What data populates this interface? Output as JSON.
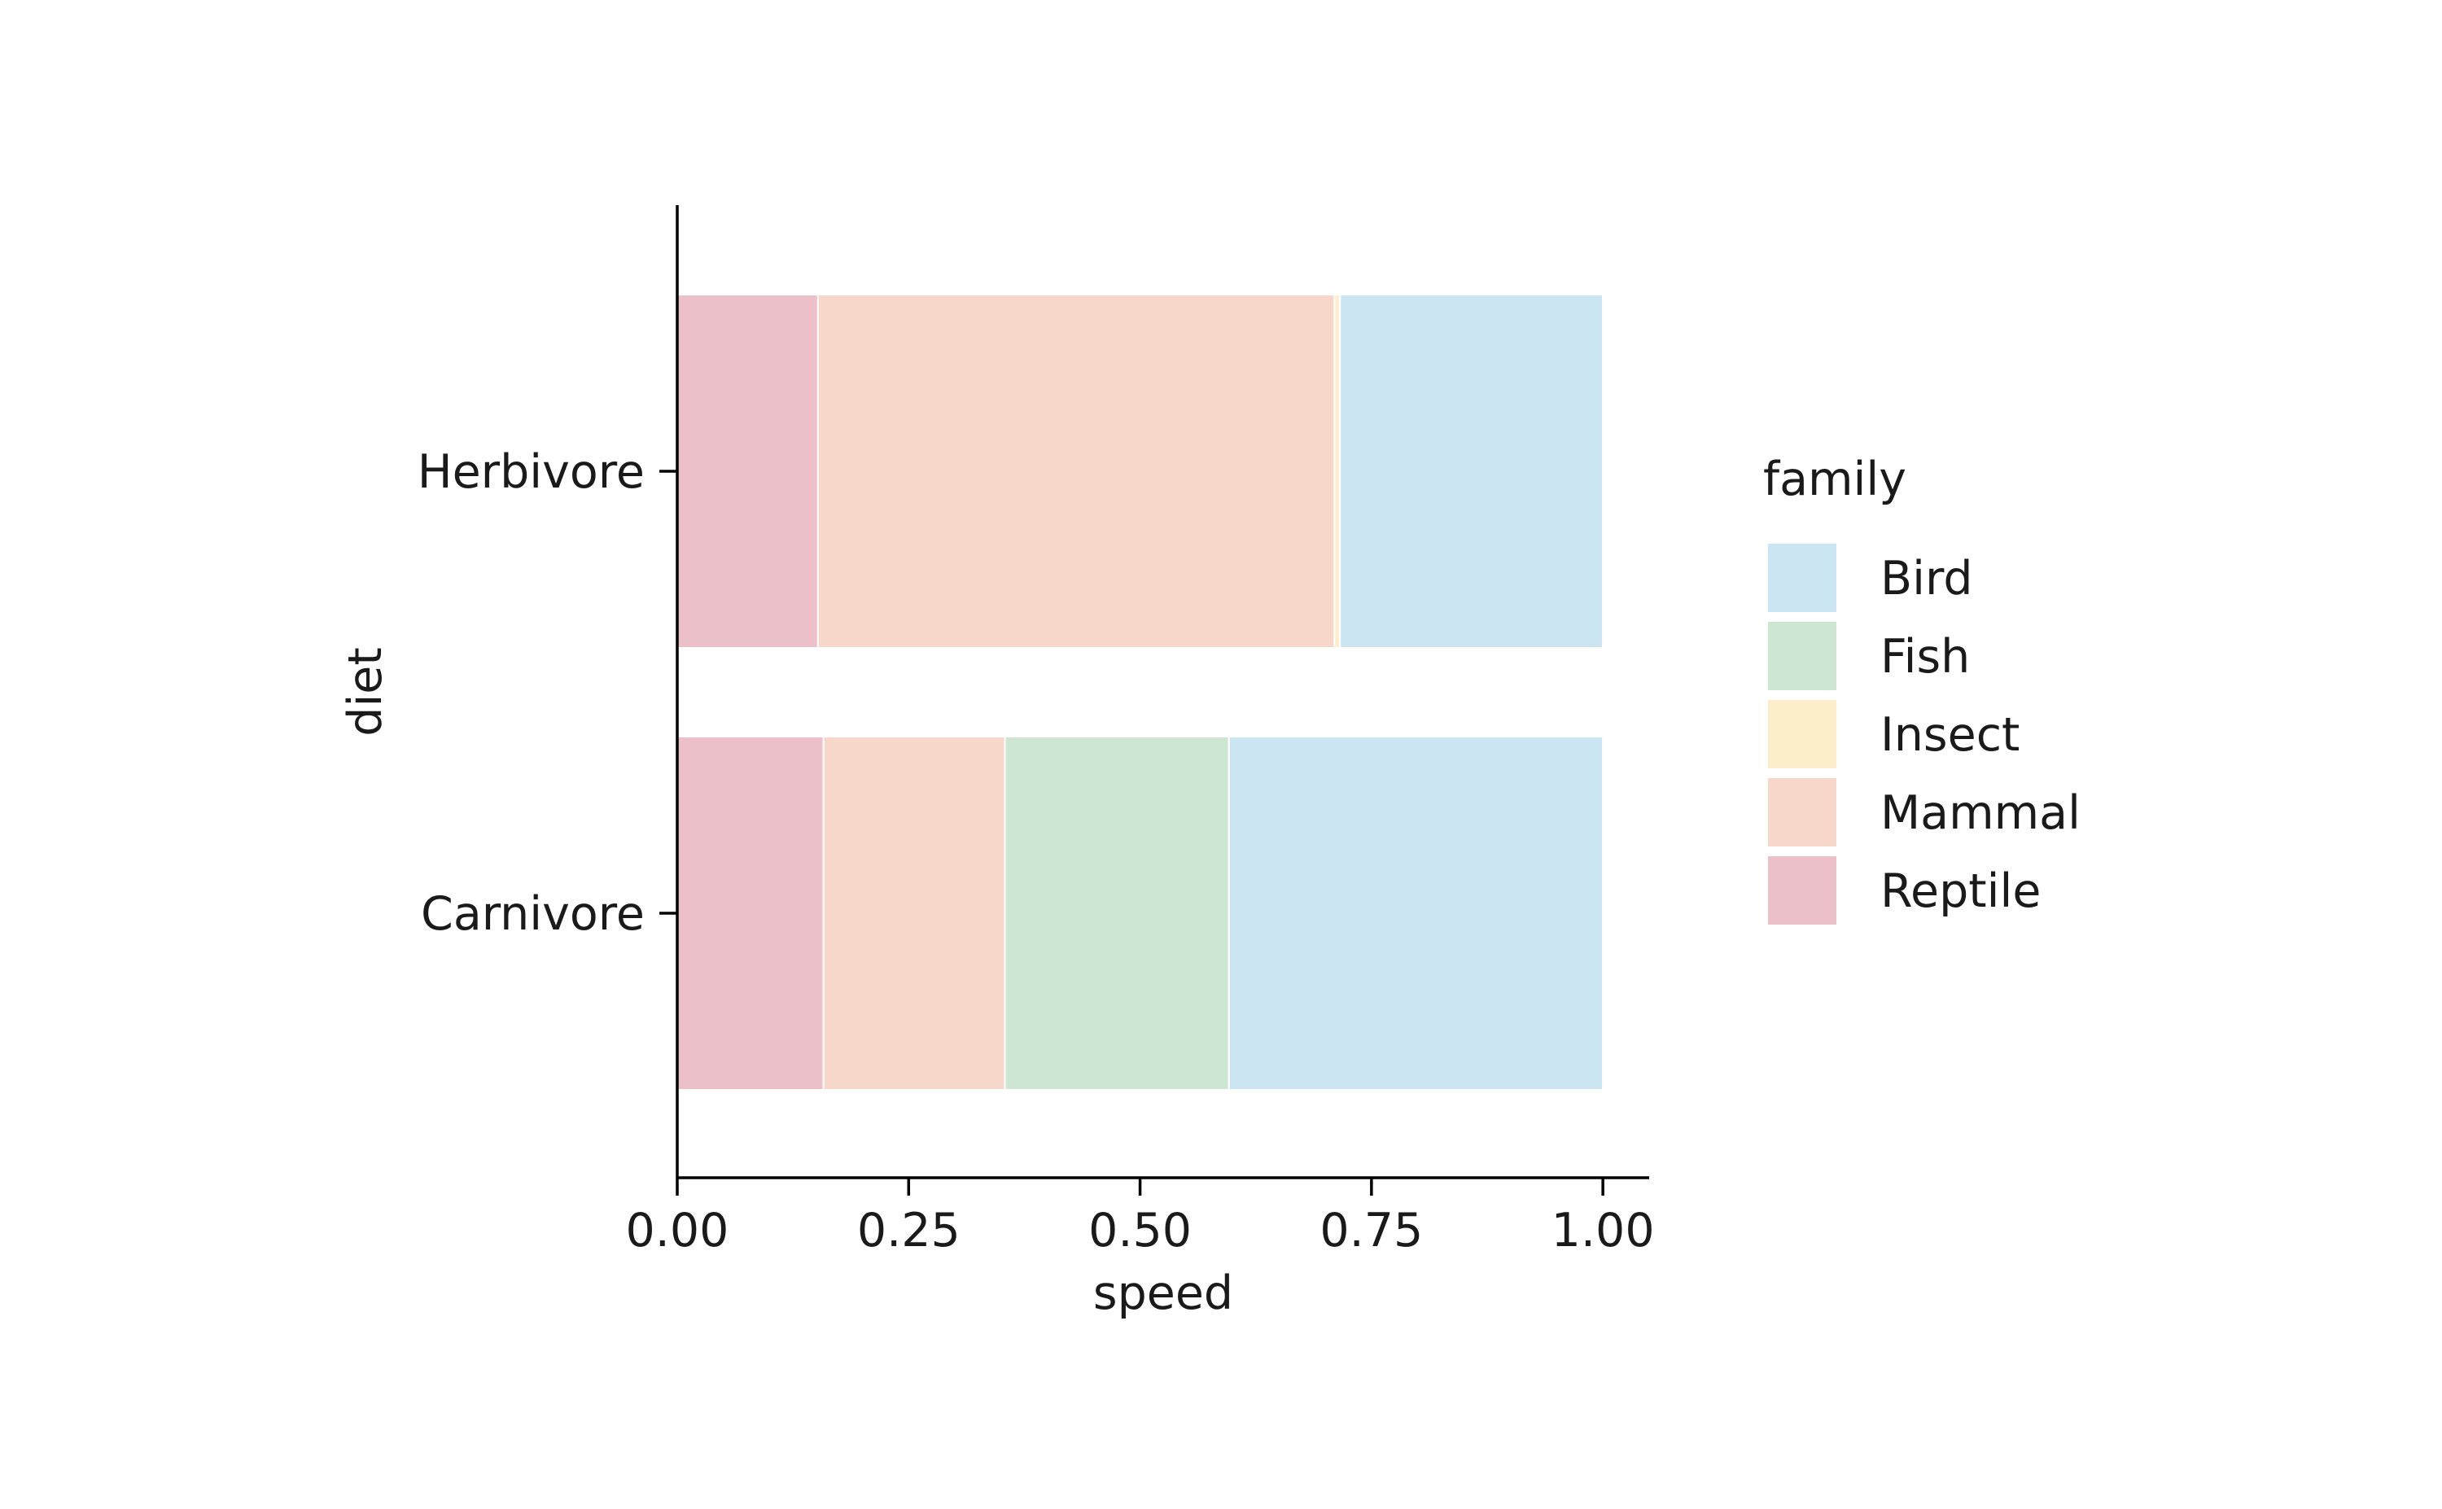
{
  "chart_data": {
    "type": "bar",
    "orientation": "horizontal",
    "stacked": true,
    "normalized": true,
    "xlabel": "speed",
    "ylabel": "diet",
    "xlim": [
      0,
      1.05
    ],
    "xticks": [
      "0.00",
      "0.25",
      "0.50",
      "0.75",
      "1.00"
    ],
    "xtick_values": [
      0,
      0.25,
      0.5,
      0.75,
      1.0
    ],
    "categories": [
      "Herbivore",
      "Carnivore"
    ],
    "stack_order": [
      "Reptile",
      "Mammal",
      "Insect",
      "Fish",
      "Bird"
    ],
    "series": [
      {
        "name": "Reptile",
        "color": "#ebc0c9",
        "values": [
          0.152,
          0.158
        ]
      },
      {
        "name": "Mammal",
        "color": "#f6d7c9",
        "values": [
          0.558,
          0.196
        ]
      },
      {
        "name": "Insect",
        "color": "#fcedcb",
        "values": [
          0.006,
          0.0
        ]
      },
      {
        "name": "Fish",
        "color": "#cde6d1",
        "values": [
          0.0,
          0.242
        ]
      },
      {
        "name": "Bird",
        "color": "#cbe5f2",
        "values": [
          0.284,
          0.404
        ]
      }
    ],
    "grid": false,
    "legend": {
      "title": "family",
      "placement": "right",
      "entries": [
        "Bird",
        "Fish",
        "Insect",
        "Mammal",
        "Reptile"
      ]
    }
  }
}
